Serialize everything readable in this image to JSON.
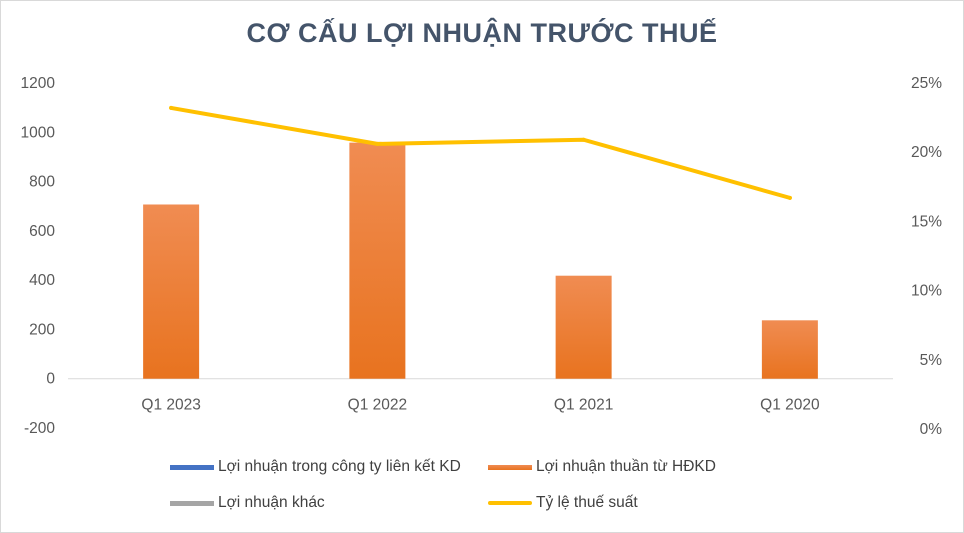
{
  "chart_data": {
    "type": "bar",
    "title": "CƠ CẤU LỢI NHUẬN TRƯỚC THUẾ",
    "categories": [
      "Q1 2023",
      "Q1 2022",
      "Q1 2021",
      "Q1 2020"
    ],
    "y_left": {
      "ylim": [
        -200,
        1200
      ],
      "ticks": [
        "-200",
        "0",
        "200",
        "400",
        "600",
        "800",
        "1000",
        "1200"
      ]
    },
    "y_right": {
      "ylim": [
        0,
        0.25
      ],
      "ticks": [
        "0%",
        "5%",
        "10%",
        "15%",
        "20%",
        "25%"
      ]
    },
    "series": [
      {
        "name": "Lợi nhuận trong công ty liên kết KD",
        "type": "bar",
        "axis": "left",
        "color": "#4472c4",
        "values": [
          0,
          0,
          0,
          0
        ]
      },
      {
        "name": "Lợi nhuận thuần từ HĐKD",
        "type": "bar",
        "axis": "left",
        "color": "#ed7d31",
        "values": [
          707,
          958,
          418,
          237
        ]
      },
      {
        "name": "Lợi nhuận khác",
        "type": "bar",
        "axis": "left",
        "color": "#a5a5a5",
        "values": [
          0,
          0,
          0,
          0
        ]
      },
      {
        "name": "Tỷ lệ thuế suất",
        "type": "line",
        "axis": "right",
        "color": "#ffc000",
        "values": [
          0.232,
          0.206,
          0.209,
          0.167
        ]
      }
    ],
    "grid": false,
    "legend_position": "bottom"
  }
}
